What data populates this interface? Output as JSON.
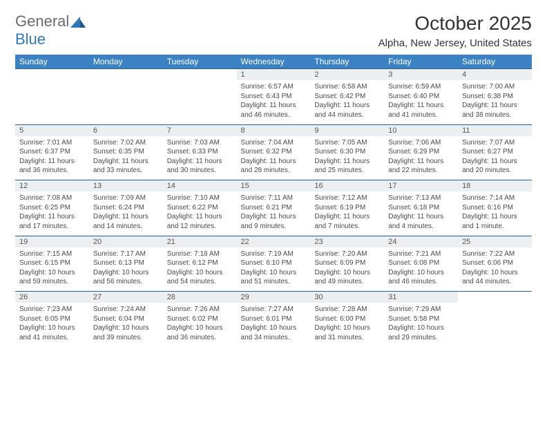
{
  "logo": {
    "text_a": "General",
    "text_b": "Blue"
  },
  "title": "October 2025",
  "location": "Alpha, New Jersey, United States",
  "colors": {
    "header_bg": "#3b82c4",
    "header_text": "#ffffff",
    "daynum_bg": "#eceff1",
    "border": "#2f5d88",
    "logo_gray": "#6b6b6b",
    "logo_blue": "#2f77b6"
  },
  "day_headers": [
    "Sunday",
    "Monday",
    "Tuesday",
    "Wednesday",
    "Thursday",
    "Friday",
    "Saturday"
  ],
  "weeks": [
    [
      null,
      null,
      null,
      {
        "n": "1",
        "sunrise": "Sunrise: 6:57 AM",
        "sunset": "Sunset: 6:43 PM",
        "daylight1": "Daylight: 11 hours",
        "daylight2": "and 46 minutes."
      },
      {
        "n": "2",
        "sunrise": "Sunrise: 6:58 AM",
        "sunset": "Sunset: 6:42 PM",
        "daylight1": "Daylight: 11 hours",
        "daylight2": "and 44 minutes."
      },
      {
        "n": "3",
        "sunrise": "Sunrise: 6:59 AM",
        "sunset": "Sunset: 6:40 PM",
        "daylight1": "Daylight: 11 hours",
        "daylight2": "and 41 minutes."
      },
      {
        "n": "4",
        "sunrise": "Sunrise: 7:00 AM",
        "sunset": "Sunset: 6:38 PM",
        "daylight1": "Daylight: 11 hours",
        "daylight2": "and 38 minutes."
      }
    ],
    [
      {
        "n": "5",
        "sunrise": "Sunrise: 7:01 AM",
        "sunset": "Sunset: 6:37 PM",
        "daylight1": "Daylight: 11 hours",
        "daylight2": "and 36 minutes."
      },
      {
        "n": "6",
        "sunrise": "Sunrise: 7:02 AM",
        "sunset": "Sunset: 6:35 PM",
        "daylight1": "Daylight: 11 hours",
        "daylight2": "and 33 minutes."
      },
      {
        "n": "7",
        "sunrise": "Sunrise: 7:03 AM",
        "sunset": "Sunset: 6:33 PM",
        "daylight1": "Daylight: 11 hours",
        "daylight2": "and 30 minutes."
      },
      {
        "n": "8",
        "sunrise": "Sunrise: 7:04 AM",
        "sunset": "Sunset: 6:32 PM",
        "daylight1": "Daylight: 11 hours",
        "daylight2": "and 28 minutes."
      },
      {
        "n": "9",
        "sunrise": "Sunrise: 7:05 AM",
        "sunset": "Sunset: 6:30 PM",
        "daylight1": "Daylight: 11 hours",
        "daylight2": "and 25 minutes."
      },
      {
        "n": "10",
        "sunrise": "Sunrise: 7:06 AM",
        "sunset": "Sunset: 6:29 PM",
        "daylight1": "Daylight: 11 hours",
        "daylight2": "and 22 minutes."
      },
      {
        "n": "11",
        "sunrise": "Sunrise: 7:07 AM",
        "sunset": "Sunset: 6:27 PM",
        "daylight1": "Daylight: 11 hours",
        "daylight2": "and 20 minutes."
      }
    ],
    [
      {
        "n": "12",
        "sunrise": "Sunrise: 7:08 AM",
        "sunset": "Sunset: 6:25 PM",
        "daylight1": "Daylight: 11 hours",
        "daylight2": "and 17 minutes."
      },
      {
        "n": "13",
        "sunrise": "Sunrise: 7:09 AM",
        "sunset": "Sunset: 6:24 PM",
        "daylight1": "Daylight: 11 hours",
        "daylight2": "and 14 minutes."
      },
      {
        "n": "14",
        "sunrise": "Sunrise: 7:10 AM",
        "sunset": "Sunset: 6:22 PM",
        "daylight1": "Daylight: 11 hours",
        "daylight2": "and 12 minutes."
      },
      {
        "n": "15",
        "sunrise": "Sunrise: 7:11 AM",
        "sunset": "Sunset: 6:21 PM",
        "daylight1": "Daylight: 11 hours",
        "daylight2": "and 9 minutes."
      },
      {
        "n": "16",
        "sunrise": "Sunrise: 7:12 AM",
        "sunset": "Sunset: 6:19 PM",
        "daylight1": "Daylight: 11 hours",
        "daylight2": "and 7 minutes."
      },
      {
        "n": "17",
        "sunrise": "Sunrise: 7:13 AM",
        "sunset": "Sunset: 6:18 PM",
        "daylight1": "Daylight: 11 hours",
        "daylight2": "and 4 minutes."
      },
      {
        "n": "18",
        "sunrise": "Sunrise: 7:14 AM",
        "sunset": "Sunset: 6:16 PM",
        "daylight1": "Daylight: 11 hours",
        "daylight2": "and 1 minute."
      }
    ],
    [
      {
        "n": "19",
        "sunrise": "Sunrise: 7:15 AM",
        "sunset": "Sunset: 6:15 PM",
        "daylight1": "Daylight: 10 hours",
        "daylight2": "and 59 minutes."
      },
      {
        "n": "20",
        "sunrise": "Sunrise: 7:17 AM",
        "sunset": "Sunset: 6:13 PM",
        "daylight1": "Daylight: 10 hours",
        "daylight2": "and 56 minutes."
      },
      {
        "n": "21",
        "sunrise": "Sunrise: 7:18 AM",
        "sunset": "Sunset: 6:12 PM",
        "daylight1": "Daylight: 10 hours",
        "daylight2": "and 54 minutes."
      },
      {
        "n": "22",
        "sunrise": "Sunrise: 7:19 AM",
        "sunset": "Sunset: 6:10 PM",
        "daylight1": "Daylight: 10 hours",
        "daylight2": "and 51 minutes."
      },
      {
        "n": "23",
        "sunrise": "Sunrise: 7:20 AM",
        "sunset": "Sunset: 6:09 PM",
        "daylight1": "Daylight: 10 hours",
        "daylight2": "and 49 minutes."
      },
      {
        "n": "24",
        "sunrise": "Sunrise: 7:21 AM",
        "sunset": "Sunset: 6:08 PM",
        "daylight1": "Daylight: 10 hours",
        "daylight2": "and 46 minutes."
      },
      {
        "n": "25",
        "sunrise": "Sunrise: 7:22 AM",
        "sunset": "Sunset: 6:06 PM",
        "daylight1": "Daylight: 10 hours",
        "daylight2": "and 44 minutes."
      }
    ],
    [
      {
        "n": "26",
        "sunrise": "Sunrise: 7:23 AM",
        "sunset": "Sunset: 6:05 PM",
        "daylight1": "Daylight: 10 hours",
        "daylight2": "and 41 minutes."
      },
      {
        "n": "27",
        "sunrise": "Sunrise: 7:24 AM",
        "sunset": "Sunset: 6:04 PM",
        "daylight1": "Daylight: 10 hours",
        "daylight2": "and 39 minutes."
      },
      {
        "n": "28",
        "sunrise": "Sunrise: 7:26 AM",
        "sunset": "Sunset: 6:02 PM",
        "daylight1": "Daylight: 10 hours",
        "daylight2": "and 36 minutes."
      },
      {
        "n": "29",
        "sunrise": "Sunrise: 7:27 AM",
        "sunset": "Sunset: 6:01 PM",
        "daylight1": "Daylight: 10 hours",
        "daylight2": "and 34 minutes."
      },
      {
        "n": "30",
        "sunrise": "Sunrise: 7:28 AM",
        "sunset": "Sunset: 6:00 PM",
        "daylight1": "Daylight: 10 hours",
        "daylight2": "and 31 minutes."
      },
      {
        "n": "31",
        "sunrise": "Sunrise: 7:29 AM",
        "sunset": "Sunset: 5:58 PM",
        "daylight1": "Daylight: 10 hours",
        "daylight2": "and 29 minutes."
      },
      null
    ]
  ]
}
